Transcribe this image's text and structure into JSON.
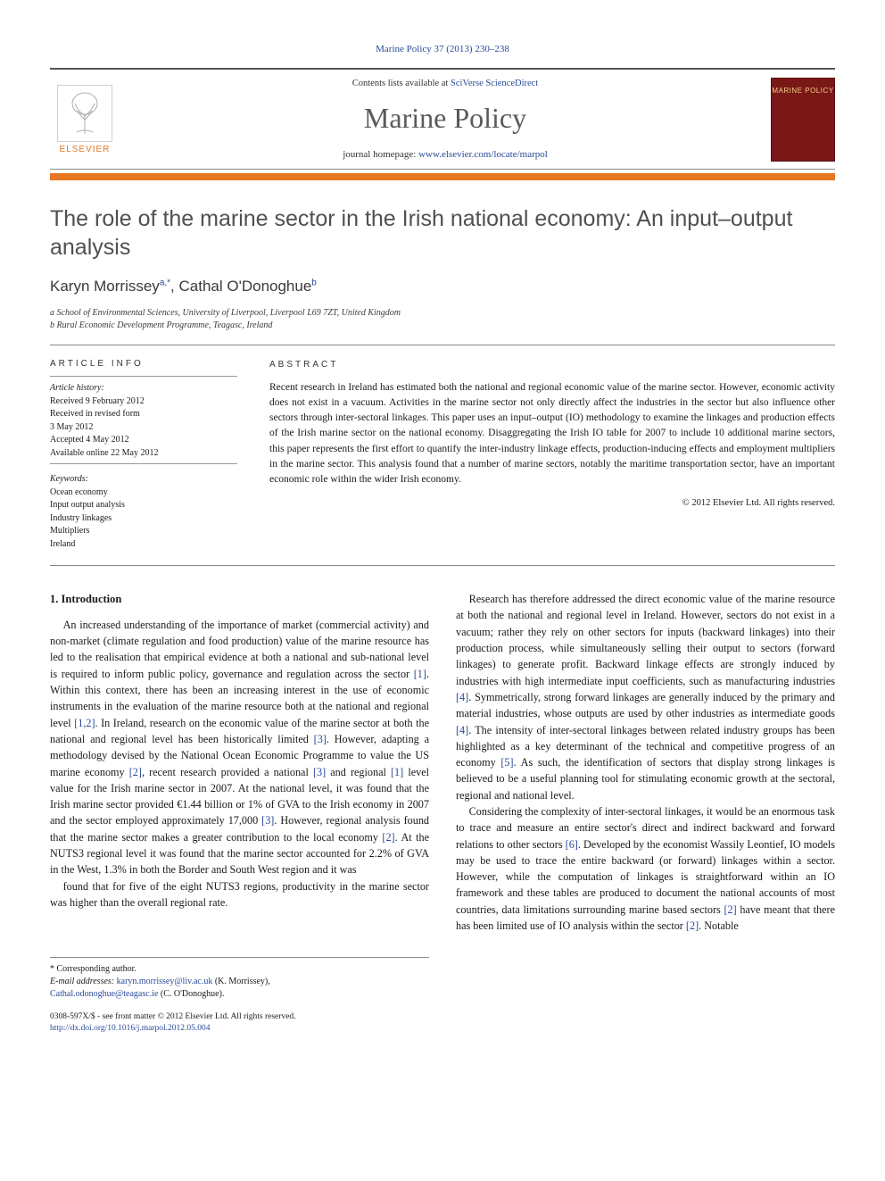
{
  "citation": "Marine Policy 37 (2013) 230–238",
  "header": {
    "contents_prefix": "Contents lists available at ",
    "contents_link": "SciVerse ScienceDirect",
    "journal": "Marine Policy",
    "homepage_prefix": "journal homepage: ",
    "homepage_url": "www.elsevier.com/locate/marpol",
    "publisher": "ELSEVIER",
    "cover_label": "MARINE POLICY"
  },
  "colors": {
    "orange": "#e87722",
    "link": "#2a4a9a",
    "cover_bg": "#7a1818",
    "cover_text": "#f0d080",
    "rule": "#888"
  },
  "article": {
    "title": "The role of the marine sector in the Irish national economy: An input–output analysis",
    "authors_html": "Karyn Morrissey",
    "author1": "Karyn Morrissey",
    "author1_sup": "a,*",
    "author2": "Cathal O'Donoghue",
    "author2_sup": "b",
    "aff_a": "a School of Environmental Sciences, University of Liverpool, Liverpool L69 7ZT, United Kingdom",
    "aff_b": "b Rural Economic Development Programme, Teagasc, Ireland"
  },
  "info": {
    "heading": "ARTICLE INFO",
    "history_label": "Article history:",
    "received": "Received 9 February 2012",
    "revised1": "Received in revised form",
    "revised2": "3 May 2012",
    "accepted": "Accepted 4 May 2012",
    "online": "Available online 22 May 2012",
    "keywords_label": "Keywords:",
    "keywords": [
      "Ocean economy",
      "Input output analysis",
      "Industry linkages",
      "Multipliers",
      "Ireland"
    ]
  },
  "abstract": {
    "heading": "ABSTRACT",
    "text": "Recent research in Ireland has estimated both the national and regional economic value of the marine sector. However, economic activity does not exist in a vacuum. Activities in the marine sector not only directly affect the industries in the sector but also influence other sectors through inter-sectoral linkages. This paper uses an input–output (IO) methodology to examine the linkages and production effects of the Irish marine sector on the national economy. Disaggregating the Irish IO table for 2007 to include 10 additional marine sectors, this paper represents the first effort to quantify the inter-industry linkage effects, production-inducing effects and employment multipliers in the marine sector. This analysis found that a number of marine sectors, notably the maritime transportation sector, have an important economic role within the wider Irish economy.",
    "copyright": "© 2012 Elsevier Ltd. All rights reserved."
  },
  "body": {
    "section_heading": "1. Introduction",
    "p1": "An increased understanding of the importance of market (commercial activity) and non-market (climate regulation and food production) value of the marine resource has led to the realisation that empirical evidence at both a national and sub-national level is required to inform public policy, governance and regulation across the sector [1]. Within this context, there has been an increasing interest in the use of economic instruments in the evaluation of the marine resource both at the national and regional level [1,2]. In Ireland, research on the economic value of the marine sector at both the national and regional level has been historically limited [3]. However, adapting a methodology devised by the National Ocean Economic Programme to value the US marine economy [2], recent research provided a national [3] and regional [1] level value for the Irish marine sector in 2007. At the national level, it was found that the Irish marine sector provided €1.44 billion or 1% of GVA to the Irish economy in 2007 and the sector employed approximately 17,000 [3]. However, regional analysis found that the marine sector makes a greater contribution to the local economy [2]. At the NUTS3 regional level it was found that the marine sector accounted for 2.2% of GVA in the West, 1.3% in both the Border and South West region and it was",
    "p2": "found that for five of the eight NUTS3 regions, productivity in the marine sector was higher than the overall regional rate.",
    "p3": "Research has therefore addressed the direct economic value of the marine resource at both the national and regional level in Ireland. However, sectors do not exist in a vacuum; rather they rely on other sectors for inputs (backward linkages) into their production process, while simultaneously selling their output to sectors (forward linkages) to generate profit. Backward linkage effects are strongly induced by industries with high intermediate input coefficients, such as manufacturing industries [4]. Symmetrically, strong forward linkages are generally induced by the primary and material industries, whose outputs are used by other industries as intermediate goods [4]. The intensity of inter-sectoral linkages between related industry groups has been highlighted as a key determinant of the technical and competitive progress of an economy [5]. As such, the identification of sectors that display strong linkages is believed to be a useful planning tool for stimulating economic growth at the sectoral, regional and national level.",
    "p4": "Considering the complexity of inter-sectoral linkages, it would be an enormous task to trace and measure an entire sector's direct and indirect backward and forward relations to other sectors [6]. Developed by the economist Wassily Leontief, IO models may be used to trace the entire backward (or forward) linkages within a sector. However, while the computation of linkages is straightforward within an IO framework and these tables are produced to document the national accounts of most countries, data limitations surrounding marine based sectors [2] have meant that there has been limited use of IO analysis within the sector [2]. Notable"
  },
  "footnotes": {
    "corresponding": "* Corresponding author.",
    "email_label": "E-mail addresses: ",
    "email1": "karyn.morrissey@liv.ac.uk",
    "email1_name": " (K. Morrissey),",
    "email2": "Cathal.odonoghue@teagasc.ie",
    "email2_name": " (C. O'Donoghue).",
    "issn_line": "0308-597X/$ - see front matter © 2012 Elsevier Ltd. All rights reserved.",
    "doi": "http://dx.doi.org/10.1016/j.marpol.2012.05.004"
  }
}
